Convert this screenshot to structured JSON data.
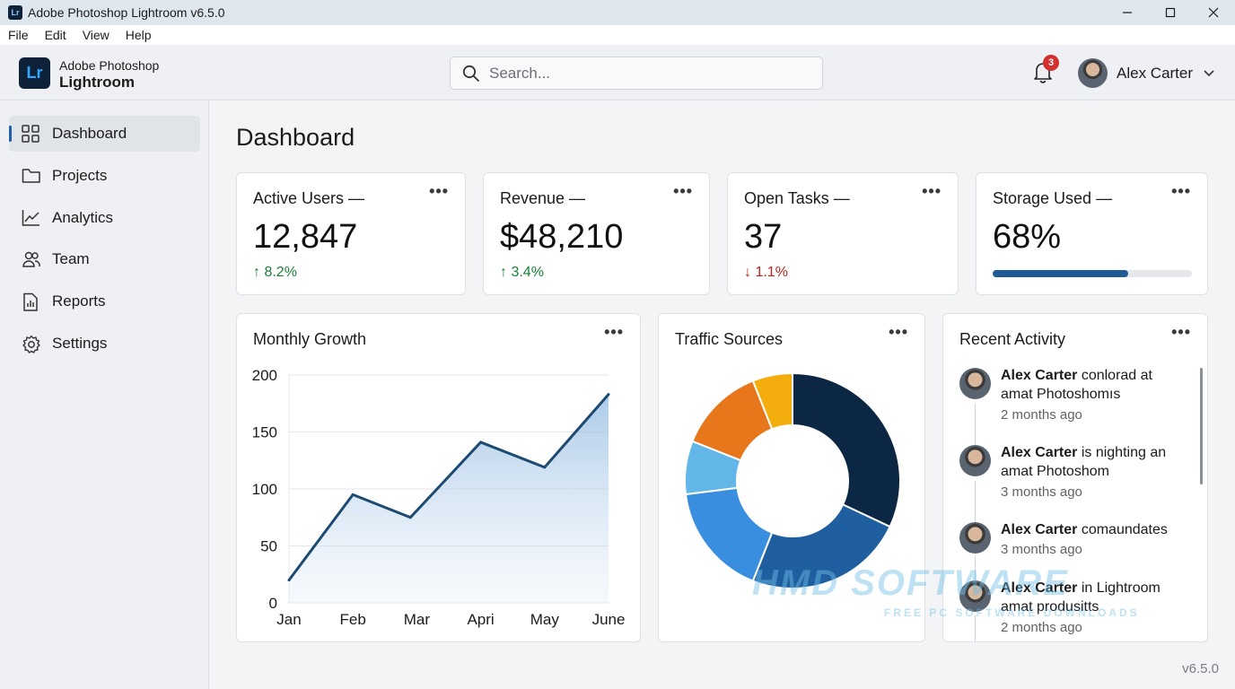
{
  "window": {
    "title": "Adobe Photoshop Lightroom v6.5.0",
    "app_icon_text": "Lr"
  },
  "menu": [
    "File",
    "Edit",
    "View",
    "Help"
  ],
  "header": {
    "logo_text": "Lr",
    "brand_top": "Adobe Photoshop",
    "brand_bottom": "Lightroom",
    "search_placeholder": "Search...",
    "notification_count": "3",
    "user_name": "Alex Carter"
  },
  "sidebar": {
    "items": [
      {
        "label": "Dashboard",
        "icon": "grid-icon",
        "active": true
      },
      {
        "label": "Projects",
        "icon": "folder-icon",
        "active": false
      },
      {
        "label": "Analytics",
        "icon": "line-chart-icon",
        "active": false
      },
      {
        "label": "Team",
        "icon": "people-icon",
        "active": false
      },
      {
        "label": "Reports",
        "icon": "report-icon",
        "active": false
      },
      {
        "label": "Settings",
        "icon": "gear-icon",
        "active": false
      }
    ]
  },
  "main": {
    "title": "Dashboard",
    "more_label": "•••",
    "stats": [
      {
        "title": "Active Users —",
        "value": "12,847",
        "delta": "↑ 8.2%",
        "trend": "up"
      },
      {
        "title": "Revenue —",
        "value": "$48,210",
        "delta": "↑ 3.4%",
        "trend": "up"
      },
      {
        "title": "Open Tasks —",
        "value": "37",
        "delta": "↓ 1.1%",
        "trend": "down"
      },
      {
        "title": "Storage Used —",
        "value": "68%",
        "progress": 0.68
      }
    ],
    "growth_title": "Monthly Growth",
    "traffic_title": "Traffic Sources",
    "activity_title": "Recent Activity",
    "activity": [
      {
        "user": "Alex Carter",
        "text": " conlorad at amat Photoshomıs",
        "time": "2 months ago"
      },
      {
        "user": "Alex Carter",
        "text": " is nighting an amat Photoshom",
        "time": "3 months ago"
      },
      {
        "user": "Alex Carter",
        "text": " comaundates",
        "time": "3 months ago"
      },
      {
        "user": "Alex Carter",
        "text": " in Lightroom amat produsitts",
        "time": "2 months ago"
      }
    ],
    "version": "v6.5.0"
  },
  "watermark": {
    "text": "HMD SOFTWARE",
    "subtext": "FREE PC SOFTWARE DOWNLOADS"
  },
  "colors": {
    "accent": "#1f5a96",
    "up": "#1a7f37",
    "down": "#b3261e"
  },
  "chart_data": [
    {
      "type": "area",
      "title": "Monthly Growth",
      "categories": [
        "Jan",
        "Feb",
        "Mar",
        "Apri",
        "May",
        "June"
      ],
      "x": [
        0,
        1,
        1.9,
        3,
        4,
        5
      ],
      "values": [
        20,
        95,
        75,
        141,
        119,
        183
      ],
      "yticks": [
        0,
        50,
        100,
        150,
        200
      ],
      "ylim": [
        0,
        200
      ],
      "grid": true,
      "color": "#1c4a73"
    },
    {
      "type": "pie",
      "title": "Traffic Sources",
      "donut": true,
      "values": [
        32,
        24,
        17,
        8,
        13,
        6
      ],
      "colors": [
        "#0c2744",
        "#1f5fa0",
        "#3a8ee0",
        "#62b6e8",
        "#e8761a",
        "#f3ae0d"
      ]
    }
  ]
}
